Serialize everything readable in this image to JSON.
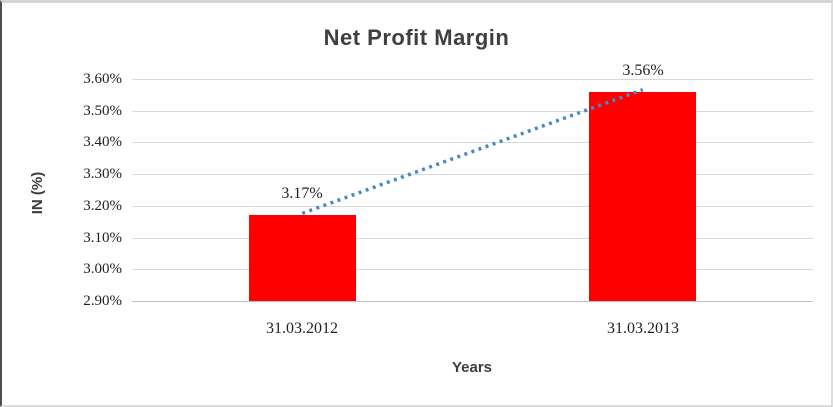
{
  "chart_data": {
    "type": "bar",
    "title": "Net Profit Margin",
    "xlabel": "Years",
    "ylabel": "IN (%)",
    "categories": [
      "31.03.2012",
      "31.03.2013"
    ],
    "series": [
      {
        "name": "Net Profit Margin",
        "values": [
          3.17,
          3.56
        ]
      }
    ],
    "data_labels": [
      "3.17%",
      "3.56%"
    ],
    "yticks": [
      {
        "value": 3.6,
        "label": "3.60%"
      },
      {
        "value": 3.5,
        "label": "3.50%"
      },
      {
        "value": 3.4,
        "label": "3.40%"
      },
      {
        "value": 3.3,
        "label": "3.30%"
      },
      {
        "value": 3.2,
        "label": "3.20%"
      },
      {
        "value": 3.1,
        "label": "3.10%"
      },
      {
        "value": 3.0,
        "label": "3.00%"
      },
      {
        "value": 2.9,
        "label": "2.90%"
      }
    ],
    "ylim": [
      2.9,
      3.6
    ],
    "grid": true,
    "legend": "none",
    "bar_color": "#ff0000",
    "trendline": {
      "style": "dotted",
      "color": "#4a86c8"
    }
  }
}
